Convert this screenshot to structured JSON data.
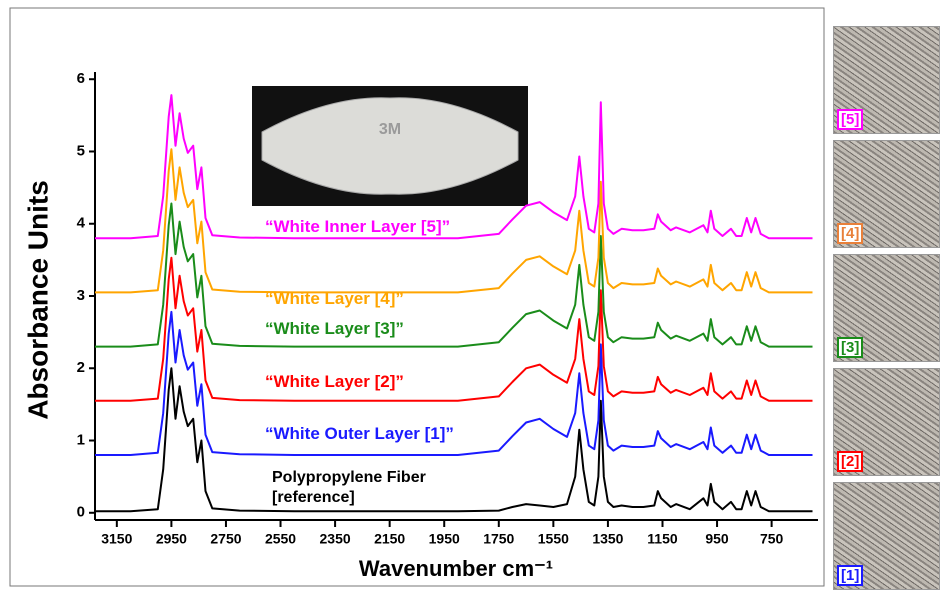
{
  "chart_data": {
    "type": "line",
    "x_label": "Wavenumber cm⁻¹",
    "y_label": "Absorbance Units",
    "xlim": [
      3230,
      580
    ],
    "ylim": [
      -0.1,
      6.1
    ],
    "xticks": [
      3150,
      2950,
      2750,
      2550,
      2350,
      2150,
      1950,
      1750,
      1550,
      1350,
      1150,
      950,
      750
    ],
    "yticks": [
      0,
      1,
      2,
      3,
      4,
      5,
      6
    ],
    "x": [
      3230,
      3100,
      3000,
      2980,
      2960,
      2950,
      2935,
      2920,
      2905,
      2890,
      2870,
      2855,
      2840,
      2825,
      2800,
      2700,
      2500,
      2300,
      2100,
      1900,
      1750,
      1700,
      1650,
      1600,
      1550,
      1500,
      1470,
      1455,
      1440,
      1420,
      1400,
      1385,
      1376,
      1365,
      1350,
      1330,
      1300,
      1260,
      1220,
      1180,
      1167,
      1155,
      1120,
      1100,
      1050,
      1000,
      985,
      973,
      960,
      930,
      899,
      880,
      860,
      841,
      825,
      809,
      790,
      760,
      700,
      600
    ],
    "series": [
      {
        "name": "Polypropylene Fiber [reference]",
        "color": "#000000",
        "values": [
          0.02,
          0.02,
          0.05,
          0.6,
          1.7,
          2.0,
          1.3,
          1.75,
          1.4,
          1.2,
          1.3,
          0.7,
          1.0,
          0.3,
          0.06,
          0.03,
          0.02,
          0.02,
          0.02,
          0.02,
          0.03,
          0.08,
          0.12,
          0.1,
          0.08,
          0.12,
          0.5,
          1.15,
          0.6,
          0.15,
          0.1,
          0.5,
          1.55,
          0.5,
          0.15,
          0.08,
          0.1,
          0.08,
          0.08,
          0.1,
          0.3,
          0.2,
          0.08,
          0.12,
          0.05,
          0.2,
          0.1,
          0.4,
          0.15,
          0.05,
          0.15,
          0.05,
          0.05,
          0.3,
          0.1,
          0.3,
          0.08,
          0.02,
          0.02,
          0.02
        ]
      },
      {
        "name": "“White Outer Layer [1]”",
        "color": "#1a1aff",
        "values": [
          0.8,
          0.8,
          0.83,
          1.38,
          2.48,
          2.78,
          2.08,
          2.53,
          2.18,
          1.98,
          2.08,
          1.48,
          1.78,
          1.08,
          0.84,
          0.81,
          0.8,
          0.8,
          0.8,
          0.8,
          0.86,
          1.06,
          1.25,
          1.3,
          1.16,
          1.05,
          1.38,
          1.93,
          1.38,
          0.93,
          0.88,
          1.28,
          2.33,
          1.28,
          0.93,
          0.86,
          0.93,
          0.91,
          0.91,
          0.93,
          1.13,
          1.03,
          0.91,
          0.95,
          0.88,
          0.98,
          0.88,
          1.18,
          0.93,
          0.83,
          0.93,
          0.83,
          0.83,
          1.08,
          0.88,
          1.08,
          0.86,
          0.8,
          0.8,
          0.8
        ]
      },
      {
        "name": "“White Layer [2]”",
        "color": "#ff0000",
        "values": [
          1.55,
          1.55,
          1.58,
          2.13,
          3.23,
          3.53,
          2.83,
          3.28,
          2.93,
          2.73,
          2.83,
          2.23,
          2.53,
          1.83,
          1.59,
          1.56,
          1.55,
          1.55,
          1.55,
          1.55,
          1.61,
          1.81,
          2.0,
          2.05,
          1.91,
          1.8,
          2.13,
          2.68,
          2.13,
          1.68,
          1.63,
          2.03,
          3.08,
          2.03,
          1.68,
          1.61,
          1.68,
          1.66,
          1.66,
          1.68,
          1.88,
          1.78,
          1.66,
          1.7,
          1.63,
          1.73,
          1.63,
          1.93,
          1.68,
          1.58,
          1.68,
          1.58,
          1.58,
          1.83,
          1.63,
          1.83,
          1.61,
          1.55,
          1.55,
          1.55
        ]
      },
      {
        "name": "“White Layer [3]”",
        "color": "#1a8c1a",
        "values": [
          2.3,
          2.3,
          2.33,
          2.88,
          3.98,
          4.28,
          3.58,
          4.03,
          3.68,
          3.48,
          3.58,
          2.98,
          3.28,
          2.58,
          2.34,
          2.31,
          2.3,
          2.3,
          2.3,
          2.3,
          2.36,
          2.56,
          2.75,
          2.8,
          2.66,
          2.55,
          2.88,
          3.43,
          2.88,
          2.43,
          2.38,
          2.78,
          3.83,
          2.78,
          2.43,
          2.36,
          2.43,
          2.41,
          2.41,
          2.43,
          2.63,
          2.53,
          2.41,
          2.45,
          2.38,
          2.48,
          2.38,
          2.68,
          2.43,
          2.33,
          2.43,
          2.33,
          2.33,
          2.58,
          2.38,
          2.58,
          2.36,
          2.3,
          2.3,
          2.3
        ]
      },
      {
        "name": "“White Layer [4]”",
        "color": "#ffa500",
        "values": [
          3.05,
          3.05,
          3.08,
          3.63,
          4.73,
          5.03,
          4.33,
          4.78,
          4.43,
          4.23,
          4.33,
          3.73,
          4.03,
          3.33,
          3.09,
          3.06,
          3.05,
          3.05,
          3.05,
          3.05,
          3.11,
          3.31,
          3.5,
          3.55,
          3.41,
          3.3,
          3.63,
          4.18,
          3.63,
          3.18,
          3.13,
          3.53,
          4.58,
          3.53,
          3.18,
          3.11,
          3.18,
          3.16,
          3.16,
          3.18,
          3.38,
          3.28,
          3.16,
          3.2,
          3.13,
          3.23,
          3.13,
          3.43,
          3.18,
          3.08,
          3.18,
          3.08,
          3.08,
          3.33,
          3.13,
          3.33,
          3.11,
          3.05,
          3.05,
          3.05
        ]
      },
      {
        "name": "“White Inner Layer [5]”",
        "color": "#ff00ff",
        "values": [
          3.8,
          3.8,
          3.83,
          4.38,
          5.48,
          5.78,
          5.08,
          5.53,
          5.18,
          4.98,
          5.08,
          4.48,
          4.78,
          4.08,
          3.84,
          3.81,
          3.8,
          3.8,
          3.8,
          3.8,
          3.86,
          4.06,
          4.25,
          4.3,
          4.16,
          4.05,
          4.38,
          4.93,
          4.38,
          3.93,
          3.88,
          4.28,
          5.68,
          4.28,
          3.93,
          3.86,
          3.93,
          3.91,
          3.91,
          3.93,
          4.13,
          4.03,
          3.91,
          3.95,
          3.88,
          3.98,
          3.88,
          4.18,
          3.93,
          3.83,
          3.93,
          3.83,
          3.83,
          4.08,
          3.88,
          4.08,
          3.86,
          3.8,
          3.8,
          3.8
        ]
      }
    ],
    "inset_text": "3M",
    "side_panels": [
      {
        "label": "[5]",
        "color": "#ff00ff"
      },
      {
        "label": "[4]",
        "color": "#e8803a"
      },
      {
        "label": "[3]",
        "color": "#1a8c1a"
      },
      {
        "label": "[2]",
        "color": "#ff0000"
      },
      {
        "label": "[1]",
        "color": "#1a1aff"
      }
    ]
  }
}
